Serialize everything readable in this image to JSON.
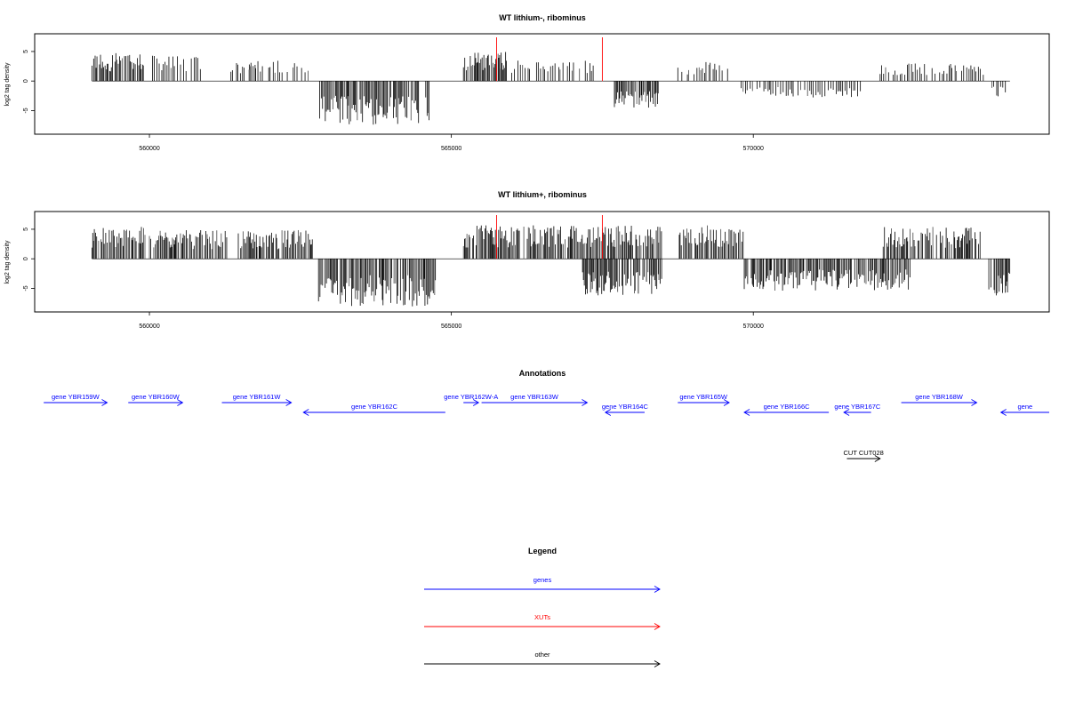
{
  "chart_data": [
    {
      "type": "bar",
      "title": "WT lithium-, ribominus",
      "ylabel": "log2 tag density",
      "xlim": [
        558100,
        574900
      ],
      "ylim": [
        -9,
        8
      ],
      "x_ticks": [
        560000,
        565000,
        570000
      ],
      "x_tick_labels": [
        "560000",
        "565000",
        "570000"
      ],
      "y_ticks": [
        -5,
        0,
        5
      ],
      "y_tick_labels": [
        "-5",
        "0",
        "5"
      ],
      "series": [
        {
          "color": "#000000",
          "segments": [
            {
              "x": [
                559050,
                559920
              ],
              "y": 3.6
            },
            {
              "x": [
                560050,
                560850
              ],
              "y": 3.2
            },
            {
              "x": [
                561350,
                561780
              ],
              "y": 2.4
            },
            {
              "x": [
                561650,
                562650
              ],
              "y": 2.8
            },
            {
              "x": [
                562820,
                564650
              ],
              "y": -5.5
            },
            {
              "x": [
                565200,
                565900
              ],
              "y": 3.8
            },
            {
              "x": [
                565800,
                567350
              ],
              "y": 2.6
            },
            {
              "x": [
                567700,
                568450
              ],
              "y": -3.4
            },
            {
              "x": [
                568750,
                569600
              ],
              "y": 2.4
            },
            {
              "x": [
                569800,
                571800
              ],
              "y": -2.2
            },
            {
              "x": [
                572100,
                573850
              ],
              "y": 2.2
            },
            {
              "x": [
                573950,
                574250
              ],
              "y": -2.0
            }
          ]
        },
        {
          "color": "#ff0000",
          "spikes": [
            {
              "x": 565750,
              "y": 7.4
            },
            {
              "x": 567500,
              "y": 7.4
            }
          ]
        }
      ]
    },
    {
      "type": "bar",
      "title": "WT lithium+, ribominus",
      "ylabel": "log2 tag density",
      "xlim": [
        558100,
        574900
      ],
      "ylim": [
        -9,
        8
      ],
      "x_ticks": [
        560000,
        565000,
        570000
      ],
      "x_tick_labels": [
        "560000",
        "565000",
        "570000"
      ],
      "y_ticks": [
        -5,
        0,
        5
      ],
      "y_tick_labels": [
        "-5",
        "0",
        "5"
      ],
      "series": [
        {
          "color": "#000000",
          "segments": [
            {
              "x": [
                559050,
                559950
              ],
              "y": 4.0
            },
            {
              "x": [
                560000,
                561300
              ],
              "y": 3.6
            },
            {
              "x": [
                561450,
                562700
              ],
              "y": 3.6
            },
            {
              "x": [
                562800,
                564750
              ],
              "y": -6.0
            },
            {
              "x": [
                565200,
                568500
              ],
              "y": 4.2
            },
            {
              "x": [
                567150,
                568500
              ],
              "y": -4.6
            },
            {
              "x": [
                568750,
                569850
              ],
              "y": 4.2
            },
            {
              "x": [
                569850,
                572600
              ],
              "y": -4.0
            },
            {
              "x": [
                572150,
                573800
              ],
              "y": 4.0
            },
            {
              "x": [
                573900,
                574250
              ],
              "y": -5.2
            }
          ]
        },
        {
          "color": "#ff0000",
          "spikes": [
            {
              "x": 565750,
              "y": 7.4
            },
            {
              "x": 567500,
              "y": 7.4
            }
          ]
        }
      ]
    }
  ],
  "annotations": {
    "title": "Annotations",
    "features": [
      {
        "label": "gene YBR159W",
        "start": 558250,
        "end": 559300,
        "strand": "+",
        "row": 0,
        "color": "#0000ff"
      },
      {
        "label": "gene YBR160W",
        "start": 559650,
        "end": 560550,
        "strand": "+",
        "row": 0,
        "color": "#0000ff"
      },
      {
        "label": "gene YBR161W",
        "start": 561200,
        "end": 562350,
        "strand": "+",
        "row": 0,
        "color": "#0000ff"
      },
      {
        "label": "gene YBR162C",
        "start": 562550,
        "end": 564900,
        "strand": "-",
        "row": 1,
        "color": "#0000ff"
      },
      {
        "label": "gene YBR162W-A",
        "start": 565200,
        "end": 565450,
        "strand": "+",
        "row": 0,
        "color": "#0000ff"
      },
      {
        "label": "gene YBR163W",
        "start": 565500,
        "end": 567250,
        "strand": "+",
        "row": 0,
        "color": "#0000ff"
      },
      {
        "label": "gene YBR164C",
        "start": 567550,
        "end": 568200,
        "strand": "-",
        "row": 1,
        "color": "#0000ff"
      },
      {
        "label": "gene YBR165W",
        "start": 568750,
        "end": 569600,
        "strand": "+",
        "row": 0,
        "color": "#0000ff"
      },
      {
        "label": "gene YBR166C",
        "start": 569850,
        "end": 571250,
        "strand": "-",
        "row": 1,
        "color": "#0000ff"
      },
      {
        "label": "gene YBR167C",
        "start": 571500,
        "end": 571950,
        "strand": "-",
        "row": 1,
        "color": "#0000ff"
      },
      {
        "label": "gene YBR168W",
        "start": 572450,
        "end": 573700,
        "strand": "+",
        "row": 0,
        "color": "#0000ff"
      },
      {
        "label": "gene",
        "start": 574100,
        "end": 574900,
        "strand": "-",
        "row": 1,
        "color": "#0000ff"
      },
      {
        "label": "CUT CUT028",
        "start": 571550,
        "end": 572100,
        "strand": "+",
        "row": 2,
        "color": "#000000"
      }
    ]
  },
  "legend": {
    "title": "Legend",
    "items": [
      {
        "label": "genes",
        "color": "#0000ff"
      },
      {
        "label": "XUTs",
        "color": "#ff0000"
      },
      {
        "label": "other",
        "color": "#000000"
      }
    ]
  }
}
